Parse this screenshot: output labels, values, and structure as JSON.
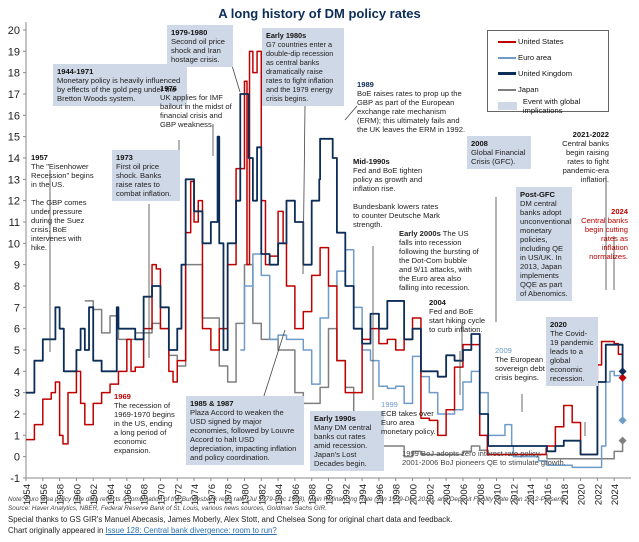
{
  "chart_data": {
    "type": "line",
    "title": "A long history of DM policy rates",
    "xlabel": "",
    "ylabel": "",
    "xlim": [
      1954,
      2026
    ],
    "ylim": [
      -1,
      20
    ],
    "y_ticks": [
      -1,
      0,
      1,
      2,
      3,
      4,
      5,
      6,
      7,
      8,
      9,
      10,
      11,
      12,
      13,
      14,
      15,
      16,
      17,
      18,
      19,
      20
    ],
    "x_ticks": [
      "1954",
      "1956",
      "1958",
      "1960",
      "1962",
      "1964",
      "1966",
      "1968",
      "1970",
      "1972",
      "1974",
      "1976",
      "1978",
      "1980",
      "1982",
      "1984",
      "1986",
      "1988",
      "1990",
      "1992",
      "1994",
      "1996",
      "1998",
      "2000",
      "2002",
      "2004",
      "2006",
      "2008",
      "2010",
      "2012",
      "2014",
      "2016",
      "2018",
      "2020",
      "2022",
      "2024"
    ],
    "grid": false,
    "legend_position": "top-right",
    "series": [
      {
        "name": "United States",
        "color": "#c00000",
        "x": [
          1954,
          1955,
          1956,
          1957,
          1957.5,
          1958,
          1958.4,
          1959,
          1960,
          1960.5,
          1961,
          1962,
          1963,
          1964,
          1965,
          1966,
          1966.5,
          1967,
          1968,
          1969,
          1969.5,
          1970,
          1971,
          1971.5,
          1972,
          1973,
          1973.6,
          1974,
          1974.5,
          1975,
          1976,
          1977,
          1978,
          1979,
          1980,
          1980.3,
          1980.6,
          1981,
          1981.5,
          1982,
          1982.5,
          1983,
          1984,
          1984.6,
          1985,
          1986,
          1987,
          1988,
          1989,
          1990,
          1991,
          1992,
          1993,
          1994,
          1995,
          1996,
          1997,
          1998,
          1999,
          2000,
          2001,
          2002,
          2003,
          2004,
          2005,
          2006,
          2007,
          2008,
          2008.9,
          2009,
          2015,
          2015.9,
          2016,
          2017,
          2018,
          2019,
          2019.5,
          2020,
          2020.3,
          2021,
          2022,
          2022.5,
          2023,
          2024,
          2024.5,
          2025
        ],
        "y": [
          0.8,
          1.5,
          2.7,
          3.0,
          3.5,
          1.0,
          0.6,
          3.0,
          4.0,
          2.5,
          1.5,
          2.5,
          3.0,
          3.4,
          4.0,
          5.5,
          4.0,
          4.2,
          6.0,
          9.0,
          8.8,
          6.0,
          4.0,
          3.5,
          4.5,
          10.5,
          12.9,
          11.0,
          12.0,
          6.0,
          5.0,
          6.0,
          9.0,
          13.5,
          17.6,
          9.0,
          19.0,
          18.0,
          19.0,
          12.0,
          9.0,
          9.4,
          11.5,
          10.0,
          8.0,
          6.0,
          6.8,
          8.5,
          9.8,
          8.0,
          4.5,
          3.0,
          3.0,
          5.5,
          6.0,
          5.3,
          5.5,
          5.0,
          5.5,
          6.5,
          1.8,
          1.7,
          1.0,
          2.2,
          4.2,
          5.25,
          5.25,
          1.0,
          0.1,
          0.1,
          0.1,
          0.4,
          0.5,
          1.4,
          2.4,
          1.6,
          1.6,
          0.1,
          0.1,
          0.1,
          4.3,
          5.4,
          5.4,
          5.3,
          4.8,
          3.7
        ]
      },
      {
        "name": "Euro area",
        "color": "#6f9bc8",
        "x": [
          1979.5,
          1980,
          1981,
          1982,
          1983,
          1984,
          1985,
          1986,
          1987,
          1988,
          1989,
          1990,
          1991,
          1992,
          1993,
          1994,
          1995,
          1996,
          1997,
          1998,
          1999,
          2000,
          2001,
          2002,
          2003,
          2004,
          2005,
          2006,
          2007,
          2008,
          2009,
          2010,
          2011,
          2011.8,
          2012,
          2014,
          2015,
          2016,
          2019,
          2022.5,
          2023,
          2023.5,
          2024,
          2025
        ],
        "y": [
          5.0,
          8.0,
          9.5,
          8.5,
          5.5,
          5.7,
          5.5,
          5.5,
          5.0,
          3.4,
          6.5,
          8.0,
          8.7,
          9.7,
          7.0,
          5.0,
          4.5,
          3.3,
          3.2,
          3.3,
          2.5,
          4.7,
          3.75,
          3.0,
          2.0,
          2.0,
          2.2,
          3.5,
          4.0,
          3.0,
          1.0,
          1.0,
          1.5,
          0.5,
          0.0,
          0.0,
          -0.2,
          -0.4,
          -0.5,
          0.5,
          3.5,
          4.0,
          3.8,
          1.7
        ]
      },
      {
        "name": "United Kingdom",
        "color": "#0b2d57",
        "x": [
          1954,
          1954.6,
          1955,
          1955.5,
          1956,
          1957,
          1957.5,
          1958,
          1958.5,
          1959,
          1960,
          1960.5,
          1961,
          1961.5,
          1962,
          1963,
          1964,
          1964.8,
          1965,
          1966,
          1967,
          1968,
          1969,
          1970,
          1971,
          1971.5,
          1972,
          1972.5,
          1973,
          1974,
          1975,
          1976,
          1976.8,
          1977,
          1977.5,
          1978,
          1979,
          1979.5,
          1980,
          1980.5,
          1981,
          1981.5,
          1982,
          1983,
          1984,
          1985,
          1986,
          1987,
          1988,
          1988.9,
          1989,
          1990,
          1990.5,
          1991,
          1992,
          1993,
          1994,
          1995,
          1996,
          1997,
          1998,
          1999,
          2000,
          2001,
          2002,
          2003,
          2004,
          2005,
          2006,
          2007,
          2008,
          2009,
          2016,
          2017,
          2018,
          2020,
          2021,
          2022,
          2023,
          2024,
          2025
        ],
        "y": [
          3.0,
          3.0,
          4.5,
          4.5,
          5.5,
          5.5,
          7.0,
          6.0,
          4.0,
          4.0,
          5.0,
          6.0,
          5.0,
          7.0,
          4.5,
          4.0,
          4.0,
          7.0,
          6.0,
          6.0,
          5.5,
          7.5,
          8.0,
          7.0,
          5.0,
          5.0,
          6.0,
          9.0,
          13.0,
          11.5,
          10.0,
          11.0,
          15.0,
          10.0,
          5.0,
          10.0,
          12.0,
          17.0,
          17.0,
          14.0,
          12.0,
          14.5,
          9.5,
          9.0,
          10.0,
          12.0,
          11.0,
          9.0,
          12.0,
          13.0,
          14.9,
          14.9,
          14.0,
          10.5,
          8.0,
          6.0,
          5.3,
          6.7,
          6.0,
          7.3,
          7.3,
          5.5,
          6.0,
          4.0,
          4.0,
          3.75,
          4.75,
          4.5,
          5.0,
          5.75,
          2.0,
          0.5,
          0.25,
          0.5,
          0.75,
          0.1,
          0.1,
          3.5,
          5.25,
          5.25,
          4.0
        ]
      },
      {
        "name": "Japan",
        "color": "#7f7f7f",
        "x": [
          1961,
          1962,
          1963,
          1964,
          1965,
          1966,
          1967,
          1968,
          1969,
          1970,
          1971,
          1972,
          1973,
          1974,
          1975,
          1976,
          1977,
          1978,
          1979,
          1980,
          1981,
          1982,
          1983,
          1984,
          1986,
          1987,
          1989,
          1990,
          1991,
          1992,
          1993,
          1994,
          1995,
          1999,
          2000,
          2001,
          2006,
          2007,
          2008,
          2009,
          2016,
          2023,
          2024,
          2025
        ],
        "y": [
          7.3,
          6.9,
          5.8,
          6.6,
          5.5,
          5.5,
          5.8,
          5.8,
          6.25,
          6.0,
          4.75,
          4.25,
          9.0,
          9.0,
          6.5,
          6.5,
          4.25,
          3.5,
          6.25,
          9.0,
          6.25,
          5.5,
          5.5,
          5.0,
          3.0,
          2.5,
          3.25,
          6.0,
          4.5,
          3.25,
          1.75,
          1.75,
          0.5,
          0.0,
          0.25,
          0.1,
          0.25,
          0.5,
          0.3,
          0.1,
          -0.1,
          -0.1,
          0.25,
          0.75
        ]
      }
    ],
    "annotations": [
      {
        "head": "1944-1971",
        "text": "Monetary policy is heavily influenced by effects of the gold peg under the Bretton Woods system."
      },
      {
        "head": "1957",
        "text": "The \"Eisenhower Recession\" begins in the US.\n\nThe GBP comes under pressure during the Suez crisis. BoE intervenes with hike."
      },
      {
        "head": "1969",
        "text": "The recession of 1969-1970 begins in the US, ending a long period of economic expansion."
      },
      {
        "head": "1973",
        "text": "First oil price shock. Banks raise rates to combat inflation."
      },
      {
        "head": "1976",
        "text": "UK applies for IMF bailout in the midst of financial crisis and GBP weakness."
      },
      {
        "head": "1979-1980",
        "text": "Second oil price shock and Iran hostage crisis."
      },
      {
        "head": "Early 1980s",
        "text": "G7 countries enter a double-dip recession as central banks dramatically raise rates to fight inflation and the 1979 energy crisis begins."
      },
      {
        "head": "1985 & 1987",
        "text": "Plaza Accord to weaken the USD signed by major economies, followed by Louvre Accord to halt USD depreciation, impacting inflation and policy coordination."
      },
      {
        "head": "1989",
        "text": "BoE raises rates to prop up the GBP as part of the European exchange rate mechanism (ERM); this ultimately fails and the UK leaves the ERM in 1992."
      },
      {
        "head": "Early 1990s",
        "text": "Many DM central banks cut rates amid recession. Japan's Lost Decades begin."
      },
      {
        "head": "Mid-1990s",
        "text": "Fed and BoE tighten policy as growth and inflation rise.\n\nBundesbank lowers rates to counter Deutsche Mark strength."
      },
      {
        "head": "1999",
        "text": "ECB takes over Euro area monetary policy."
      },
      {
        "head": "",
        "text": "1999 BoJ adopts zero interest rate policy.\n2001-2006 BoJ pioneers QE to stimulate growth."
      },
      {
        "head": "Early 2000s",
        "text": "The US falls into recession following the bursting of the Dot-Com bubble and 9/11 attacks, with the Euro area also falling into recession."
      },
      {
        "head": "2004",
        "text": "Fed and BoE start hiking cycle to curb inflation."
      },
      {
        "head": "2008",
        "text": "Global Financial Crisis (GFC)."
      },
      {
        "head": "2009",
        "text": "The European sovereign debt crisis begins."
      },
      {
        "head": "Post-GFC",
        "text": "DM central banks adopt unconventional monetary policies, including QE in US/UK. In 2013, Japan implements QQE as part of Abenomics."
      },
      {
        "head": "2020",
        "text": "The Covid-19 pandemic leads to a global economic recession."
      },
      {
        "head": "2021-2022",
        "text": "Central banks begin raising rates to fight pandemic-era inflation."
      },
      {
        "head": "2024",
        "text": "Central banks begin cutting rates as inflation normalizes."
      }
    ],
    "legend": [
      "United States",
      "Euro area",
      "United Kingdom",
      "Japan",
      "Event with global implications"
    ]
  },
  "footer": {
    "note": "Note: Euro area policy rate data reflects a combination of the Bundesbank repo rate (Jul 1979-Dec 1998), Main Refinancing Rate (Jan 1999-Dec 2011), and Deposit Facility Rate (Jan 2012-Present).",
    "source": "Source: Haver Analytics, NBER, Federal Reserve Bank of St. Louis, various news sources, Goldman Sachs GIR.",
    "thanks": "Special thanks to GS GIR's Manuel Abecasis, James Moberly, Alex Stott, and Chelsea Song for original chart data and feedback.",
    "origin_prefix": "Chart originally appeared in ",
    "origin_link": "Issue 128: Central bank divergence: room to run?"
  }
}
